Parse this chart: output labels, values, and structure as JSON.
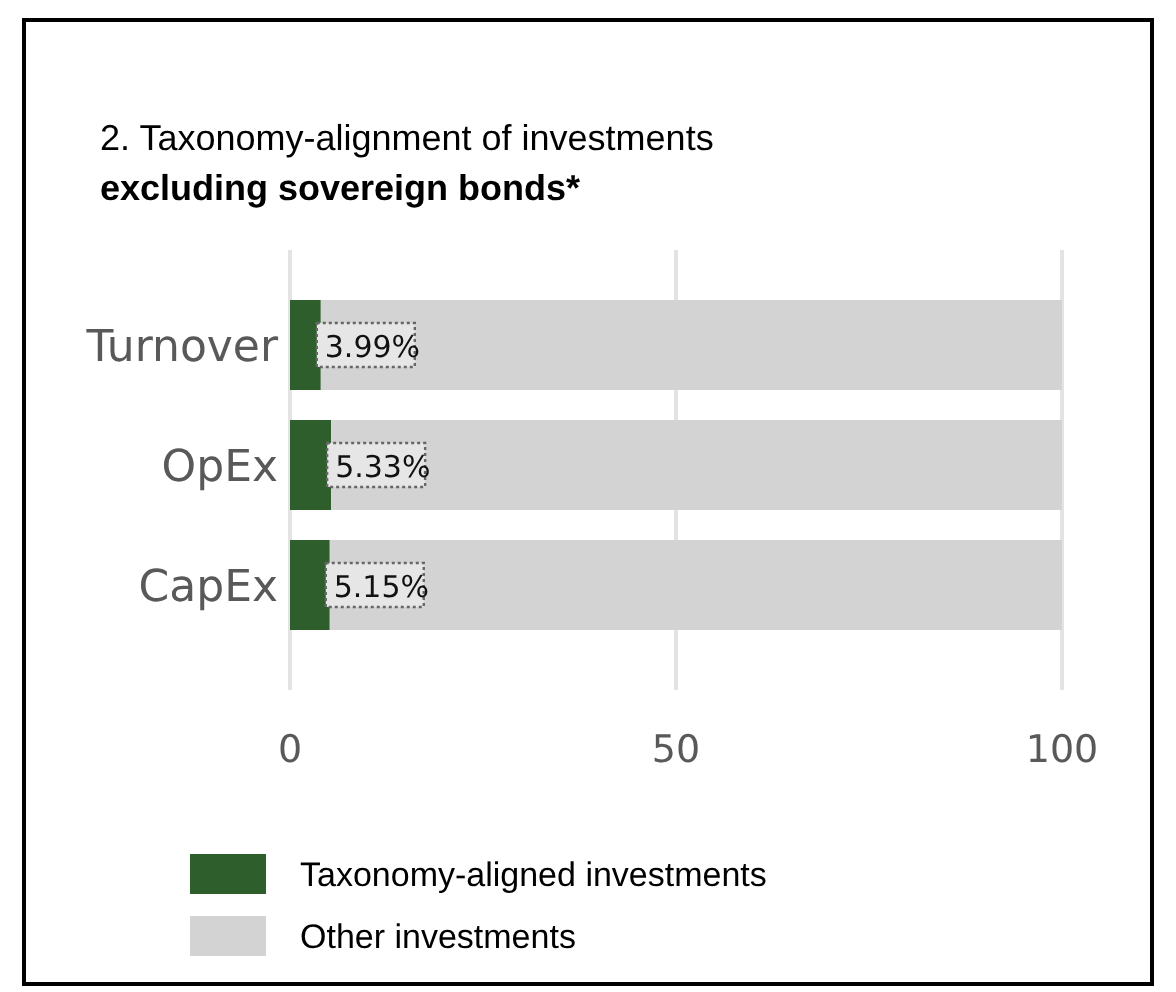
{
  "chart_data": {
    "type": "bar",
    "orientation": "horizontal",
    "stacked": true,
    "title": "2. Taxonomy-alignment of investments",
    "subtitle": "excluding sovereign bonds*",
    "categories": [
      "Turnover",
      "OpEx",
      "CapEx"
    ],
    "series": [
      {
        "name": "Taxonomy-aligned investments",
        "color": "#2e5e2c",
        "values": [
          3.99,
          5.33,
          5.15
        ],
        "value_labels": [
          "3.99%",
          "5.33%",
          "5.15%"
        ]
      },
      {
        "name": "Other investments",
        "color": "#d3d3d3",
        "values": [
          96.01,
          94.67,
          94.85
        ]
      }
    ],
    "xlim": [
      0,
      100
    ],
    "xticks": [
      0,
      50,
      100
    ],
    "grid": "x",
    "legend": "bottom"
  }
}
